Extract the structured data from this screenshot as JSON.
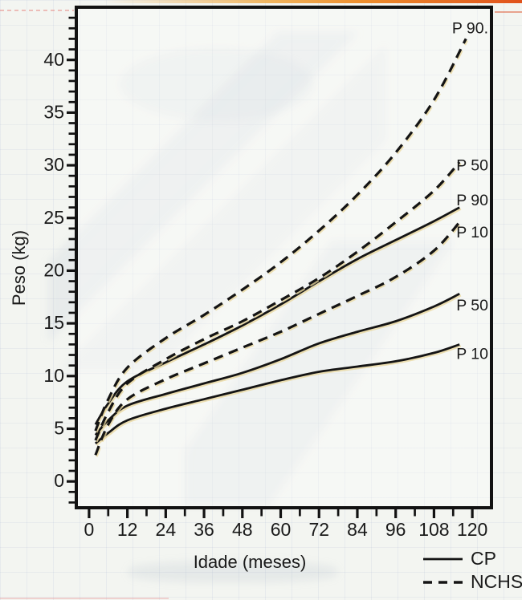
{
  "figure": {
    "type_note": "scanned growth-reference chart, weight-for-age, CP study vs NCHS reference",
    "colors": {
      "curve": "#141414",
      "text": "#1a1a1a",
      "axis": "#121212",
      "scan_edge_orange": "#e0521c",
      "scan_edge_orange_light": "#f0aa46",
      "scan_shadow_yellow": "#e9d79b",
      "page_background": "#f3f5f1"
    }
  },
  "chart_data": {
    "type": "line",
    "title": "",
    "xlabel": "Idade (meses)",
    "ylabel": "Peso (kg)",
    "x_ticks": [
      0,
      12,
      24,
      36,
      48,
      60,
      72,
      84,
      96,
      108,
      120
    ],
    "y_ticks": [
      0,
      5,
      10,
      15,
      20,
      25,
      30,
      35,
      40
    ],
    "x_minor_step": 6,
    "y_minor_step": 1,
    "xlim": [
      -4,
      126
    ],
    "ylim": [
      -2.5,
      45
    ],
    "grid": false,
    "legend_position": "bottom-right",
    "legend": [
      {
        "label": "CP",
        "style": "solid"
      },
      {
        "label": "NCHS",
        "style": "dashed"
      }
    ],
    "series": [
      {
        "name": "cp-p10",
        "group": "CP",
        "percentile": "P 10",
        "style": "solid",
        "label": "P 10",
        "label_at_kg": 12.0,
        "x": [
          2,
          6,
          12,
          24,
          36,
          48,
          60,
          72,
          84,
          96,
          108,
          116
        ],
        "values": [
          3.6,
          4.6,
          5.8,
          6.9,
          7.8,
          8.7,
          9.6,
          10.4,
          10.9,
          11.4,
          12.2,
          13.0
        ]
      },
      {
        "name": "cp-p50",
        "group": "CP",
        "percentile": "P 50",
        "style": "solid",
        "label": "P 50",
        "label_at_kg": 16.6,
        "x": [
          2,
          6,
          12,
          24,
          36,
          48,
          60,
          72,
          84,
          96,
          108,
          116
        ],
        "values": [
          4.4,
          5.8,
          7.2,
          8.3,
          9.3,
          10.3,
          11.6,
          13.1,
          14.2,
          15.2,
          16.6,
          17.8
        ]
      },
      {
        "name": "cp-p90",
        "group": "CP",
        "percentile": "P 90",
        "style": "solid",
        "label": "P 90",
        "label_at_kg": 26.6,
        "x": [
          2,
          6,
          12,
          24,
          36,
          48,
          60,
          72,
          84,
          96,
          108,
          116
        ],
        "values": [
          5.4,
          7.4,
          9.5,
          11.3,
          13.0,
          14.8,
          16.8,
          19.0,
          21.1,
          22.9,
          24.7,
          26.0
        ]
      },
      {
        "name": "nchs-p10",
        "group": "NCHS",
        "percentile": "P 10",
        "style": "dashed",
        "label": "P 10",
        "label_at_kg": 23.55,
        "x": [
          2,
          6,
          12,
          24,
          36,
          48,
          60,
          72,
          84,
          96,
          108,
          116
        ],
        "values": [
          2.5,
          5.4,
          7.8,
          9.7,
          11.2,
          12.7,
          14.2,
          15.9,
          17.6,
          19.4,
          21.9,
          24.6
        ]
      },
      {
        "name": "nchs-p50",
        "group": "NCHS",
        "percentile": "P 50",
        "style": "dashed",
        "label": "P 50",
        "label_at_kg": 29.9,
        "x": [
          2,
          6,
          12,
          24,
          36,
          48,
          60,
          72,
          84,
          96,
          108,
          116
        ],
        "values": [
          3.9,
          6.6,
          9.3,
          11.6,
          13.5,
          15.2,
          17.2,
          19.3,
          21.8,
          24.6,
          27.6,
          30.3
        ]
      },
      {
        "name": "nchs-p90",
        "group": "NCHS",
        "percentile": "P 90",
        "style": "dashed",
        "label": "P 90.",
        "label_at_kg": 42.9,
        "x": [
          2,
          6,
          12,
          24,
          36,
          48,
          60,
          72,
          84,
          96,
          108,
          118
        ],
        "values": [
          4.8,
          7.8,
          10.8,
          13.6,
          15.8,
          18.2,
          20.8,
          23.8,
          27.2,
          31.2,
          36.2,
          42.0
        ]
      }
    ]
  }
}
